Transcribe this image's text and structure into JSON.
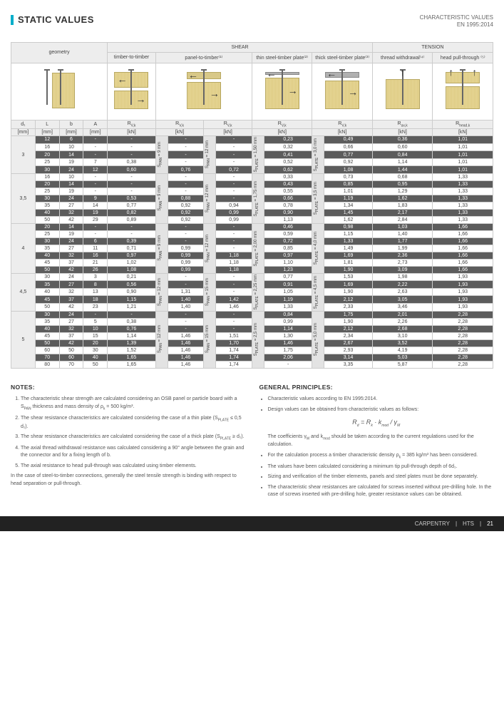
{
  "header": {
    "title": "STATIC VALUES",
    "subtitle1": "CHARACTERISTIC VALUES",
    "subtitle2": "EN 1995:2014"
  },
  "categories": {
    "geometry": "geometry",
    "shear": "SHEAR",
    "tension": "TENSION",
    "timber_timber": "timber-to-timber",
    "panel_timber": "panel-to-timber⁽¹⁾",
    "thin_steel": "thin steel-timber plate⁽²⁾",
    "thick_steel": "thick steel-timber plate⁽³⁾",
    "thread_withdrawal": "thread withdrawal⁽⁴⁾",
    "head_pull": "head pull-through ⁽⁵⁾"
  },
  "symbols": {
    "d1": "d₁",
    "L": "L",
    "b": "b",
    "A": "A",
    "Rvk": "R<sub>V,k</sub>",
    "Raxk": "R<sub>ax,k</sub>",
    "Rheadk": "R<sub>head,k</sub>"
  },
  "units": {
    "mm": "[mm]",
    "kN": "[kN]"
  },
  "side_labels": {
    "span9": "S<sub>PAN</sub> = 9 mm",
    "span12": "S<sub>PAN</sub> = 12 mm",
    "span15": "S<sub>PAN</sub> = 15 mm",
    "splate15": "S<sub>PLATE</sub> = 1,50 mm",
    "splate175": "S<sub>PLATE</sub> = 1,75 mm",
    "splate20": "S<sub>PLATE</sub> = 2,00 mm",
    "splate225": "S<sub>PLATE</sub> = 2,25 mm",
    "splate25": "S<sub>PLATE</sub> = 2,5 mm",
    "splatet30": "S<sub>PLATE</sub> = 3,0 mm",
    "splatet35": "S<sub>PLATE</sub> = 3,5 mm",
    "splatet40": "S<sub>PLATE</sub> = 4,0 mm",
    "splatet45": "S<sub>PLATE</sub> = 4,5 mm",
    "splatet50": "S<sub>PLATE</sub> = 5,0 mm"
  },
  "groups": [
    {
      "d1": "3",
      "span": "span9",
      "splate": "splate15",
      "splatet": "splatet30",
      "rows": [
        {
          "L": "12",
          "b": "6",
          "A": "-",
          "tt": "-",
          "pt1": "-",
          "pt2": "-",
          "thin": "0,23",
          "thick": "0,49",
          "ax": "0,36",
          "head": "1,01",
          "dark": true
        },
        {
          "L": "16",
          "b": "10",
          "A": "-",
          "tt": "-",
          "pt1": "-",
          "pt2": "-",
          "thin": "0,32",
          "thick": "0,66",
          "ax": "0,60",
          "head": "1,01"
        },
        {
          "L": "20",
          "b": "14",
          "A": "-",
          "tt": "-",
          "pt1": "-",
          "pt2": "-",
          "thin": "0,41",
          "thick": "0,77",
          "ax": "0,84",
          "head": "1,01",
          "dark": true
        },
        {
          "L": "25",
          "b": "19",
          "A": "7",
          "tt": "0,38",
          "pt1": "-",
          "pt2": "-",
          "thin": "0,52",
          "thick": "0,92",
          "ax": "1,14",
          "head": "1,01"
        },
        {
          "L": "30",
          "b": "24",
          "A": "12",
          "tt": "0,60",
          "pt1": "0,76",
          "pt2": "0,72",
          "thin": "0,62",
          "thick": "1,08",
          "ax": "1,44",
          "head": "1,01",
          "dark": true
        }
      ]
    },
    {
      "d1": "3,5",
      "span": "span9",
      "span2": "span12",
      "splate": "splate175",
      "splatet": "splatet35",
      "rows": [
        {
          "L": "16",
          "b": "10",
          "A": "-",
          "tt": "-",
          "pt1": "-",
          "pt2": "-",
          "thin": "0,33",
          "thick": "0,73",
          "ax": "0,68",
          "head": "1,33"
        },
        {
          "L": "20",
          "b": "14",
          "A": "-",
          "tt": "-",
          "pt1": "-",
          "pt2": "-",
          "thin": "0,43",
          "thick": "0,85",
          "ax": "0,95",
          "head": "1,33",
          "dark": true
        },
        {
          "L": "25",
          "b": "19",
          "A": "-",
          "tt": "-",
          "pt1": "-",
          "pt2": "-",
          "thin": "0,55",
          "thick": "1,01",
          "ax": "1,29",
          "head": "1,33"
        },
        {
          "L": "30",
          "b": "24",
          "A": "9",
          "tt": "0,53",
          "pt1": "0,88",
          "pt2": "-",
          "thin": "0,66",
          "thick": "1,19",
          "ax": "1,62",
          "head": "1,33",
          "dark": true
        },
        {
          "L": "35",
          "b": "27",
          "A": "14",
          "tt": "0,77",
          "pt1": "0,92",
          "pt2": "0,94",
          "thin": "0,78",
          "thick": "1,34",
          "ax": "1,83",
          "head": "1,33"
        },
        {
          "L": "40",
          "b": "32",
          "A": "19",
          "tt": "0,82",
          "pt1": "0,92",
          "pt2": "0,99",
          "thin": "0,90",
          "thick": "1,45",
          "ax": "2,17",
          "head": "1,33",
          "dark": true
        },
        {
          "L": "50",
          "b": "42",
          "A": "29",
          "tt": "0,89",
          "pt1": "0,92",
          "pt2": "0,99",
          "thin": "1,13",
          "thick": "1,62",
          "ax": "2,84",
          "head": "1,33"
        }
      ]
    },
    {
      "d1": "4",
      "span": "span9",
      "span2": "span12",
      "splate": "splate20",
      "splatet": "splatet40",
      "rows": [
        {
          "L": "20",
          "b": "14",
          "A": "-",
          "tt": "-",
          "pt1": "-",
          "pt2": "-",
          "thin": "0,46",
          "thick": "0,98",
          "ax": "1,03",
          "head": "1,66",
          "dark": true
        },
        {
          "L": "25",
          "b": "19",
          "A": "-",
          "tt": "-",
          "pt1": "-",
          "pt2": "-",
          "thin": "0,59",
          "thick": "1,15",
          "ax": "1,40",
          "head": "1,66"
        },
        {
          "L": "30",
          "b": "24",
          "A": "6",
          "tt": "0,39",
          "pt1": "-",
          "pt2": "-",
          "thin": "0,72",
          "thick": "1,33",
          "ax": "1,77",
          "head": "1,66",
          "dark": true
        },
        {
          "L": "35",
          "b": "27",
          "A": "11",
          "tt": "0,71",
          "pt1": "0,99",
          "pt2": "-",
          "thin": "0,85",
          "thick": "1,49",
          "ax": "1,99",
          "head": "1,66"
        },
        {
          "L": "40",
          "b": "32",
          "A": "16",
          "tt": "0,97",
          "pt1": "0,99",
          "pt2": "1,18",
          "thin": "0,97",
          "thick": "1,69",
          "ax": "2,36",
          "head": "1,66",
          "dark": true
        },
        {
          "L": "45",
          "b": "37",
          "A": "21",
          "tt": "1,02",
          "pt1": "0,99",
          "pt2": "1,18",
          "thin": "1,10",
          "thick": "1,81",
          "ax": "2,73",
          "head": "1,66"
        },
        {
          "L": "50",
          "b": "42",
          "A": "26",
          "tt": "1,08",
          "pt1": "0,99",
          "pt2": "1,18",
          "thin": "1,23",
          "thick": "1,90",
          "ax": "3,09",
          "head": "1,66",
          "dark": true
        }
      ]
    },
    {
      "d1": "4,5",
      "span": "span12",
      "span2": "span15",
      "splate": "splate225",
      "splatet": "splatet45",
      "rows": [
        {
          "L": "30",
          "b": "24",
          "A": "3",
          "tt": "0,21",
          "pt1": "-",
          "pt2": "-",
          "thin": "0,77",
          "thick": "1,53",
          "ax": "1,98",
          "head": "1,93"
        },
        {
          "L": "35",
          "b": "27",
          "A": "8",
          "tt": "0,56",
          "pt1": "-",
          "pt2": "-",
          "thin": "0,91",
          "thick": "1,69",
          "ax": "2,22",
          "head": "1,93",
          "dark": true
        },
        {
          "L": "40",
          "b": "32",
          "A": "13",
          "tt": "0,90",
          "pt1": "1,31",
          "pt2": "-",
          "thin": "1,05",
          "thick": "1,90",
          "ax": "2,63",
          "head": "1,93"
        },
        {
          "L": "45",
          "b": "37",
          "A": "18",
          "tt": "1,15",
          "pt1": "1,40",
          "pt2": "1,42",
          "thin": "1,19",
          "thick": "2,12",
          "ax": "3,05",
          "head": "1,93",
          "dark": true
        },
        {
          "L": "50",
          "b": "42",
          "A": "23",
          "tt": "1,21",
          "pt1": "1,40",
          "pt2": "1,46",
          "thin": "1,33",
          "thick": "2,33",
          "ax": "3,46",
          "head": "1,93"
        }
      ]
    },
    {
      "d1": "5",
      "span": "span12",
      "span2": "span15",
      "splate": "splate25",
      "splatet": "splatet50",
      "rows": [
        {
          "L": "30",
          "b": "24",
          "A": "-",
          "tt": "-",
          "pt1": "-",
          "pt2": "-",
          "thin": "0,84",
          "thick": "1,75",
          "ax": "2,01",
          "head": "2,28",
          "dark": true
        },
        {
          "L": "35",
          "b": "27",
          "A": "5",
          "tt": "0,38",
          "pt1": "-",
          "pt2": "-",
          "thin": "0,99",
          "thick": "1,90",
          "ax": "2,26",
          "head": "2,28"
        },
        {
          "L": "40",
          "b": "32",
          "A": "10",
          "tt": "0,76",
          "pt1": "-",
          "pt2": "-",
          "thin": "1,14",
          "thick": "2,12",
          "ax": "2,68",
          "head": "2,28",
          "dark": true
        },
        {
          "L": "45",
          "b": "37",
          "A": "15",
          "tt": "1,14",
          "pt1": "1,46",
          "pt2": "1,51",
          "thin": "1,30",
          "thick": "2,34",
          "ax": "3,10",
          "head": "2,28"
        },
        {
          "L": "50",
          "b": "42",
          "A": "20",
          "tt": "1,39",
          "pt1": "1,46",
          "pt2": "1,70",
          "thin": "1,46",
          "thick": "2,67",
          "ax": "3,52",
          "head": "2,28",
          "dark": true
        },
        {
          "L": "60",
          "b": "50",
          "A": "30",
          "tt": "1,52",
          "pt1": "1,46",
          "pt2": "1,74",
          "thin": "1,75",
          "thick": "2,93",
          "ax": "4,19",
          "head": "2,28"
        },
        {
          "L": "70",
          "b": "60",
          "A": "40",
          "tt": "1,65",
          "pt1": "1,46",
          "pt2": "1,74",
          "thin": "2,06",
          "thick": "3,14",
          "ax": "5,03",
          "head": "2,28",
          "dark": true
        },
        {
          "L": "80",
          "b": "70",
          "A": "50",
          "tt": "1,65",
          "pt1": "1,46",
          "pt2": "1,74",
          "thin": "-",
          "thick": "3,35",
          "ax": "5,87",
          "head": "2,28"
        }
      ]
    }
  ],
  "notes": {
    "title": "NOTES:",
    "items": [
      "The characteristic shear strength are calculated considering an OSB panel or particle board with a S<sub>PAN</sub> thickness and mass density of ρ<sub>k</sub> = 500 kg/m³.",
      "The shear resistance characteristics are calculated considering the case of a thin plate (S<sub>PLATE</sub> ≤ 0,5 d₁).",
      "The shear resistance characteristics are calculated considering the case of a thick plate (S<sub>PLATE</sub> ≥ d₁).",
      "The axial thread withdrawal resistance was calculated considering a 90° angle between the grain and the connector and for a fixing length of b.",
      "The axial resistance to head pull-through was calculated using timber elements."
    ],
    "footer_note": "In the case of steel-to-timber connections, generally the steel tensile strength is binding with respect to head separation or pull-through."
  },
  "principles": {
    "title": "GENERAL PRINCIPLES:",
    "items": [
      "Characteristic values according to EN 1995:2014.",
      "Design values can be obtained from characteristic values as follows:"
    ],
    "formula": "R<sub>d</sub> = R<sub>k</sub> · k<sub>mod</sub> / γ<sub>M</sub>",
    "post_formula": "The coefficients γ<sub>M</sub> and k<sub>mod</sub> should be taken according to the current regulations used for the calculation.",
    "more": [
      "For the calculation process a timber characteristic density ρ<sub>k</sub> = 385 kg/m³ has been considered.",
      "The values have been calculated considering a minimum tip pull-through depth of 6d₁.",
      "Sizing and verification of the timber elements, panels and steel plates must be done separately.",
      "The characteristic shear resistances are calculated for screws inserted without pre-drilling hole. In the case of screws inserted with pre-drilling hole, greater resistance values can be obtained."
    ]
  },
  "footer": {
    "cat": "CARPENTRY",
    "code": "HTS",
    "page": "21"
  }
}
